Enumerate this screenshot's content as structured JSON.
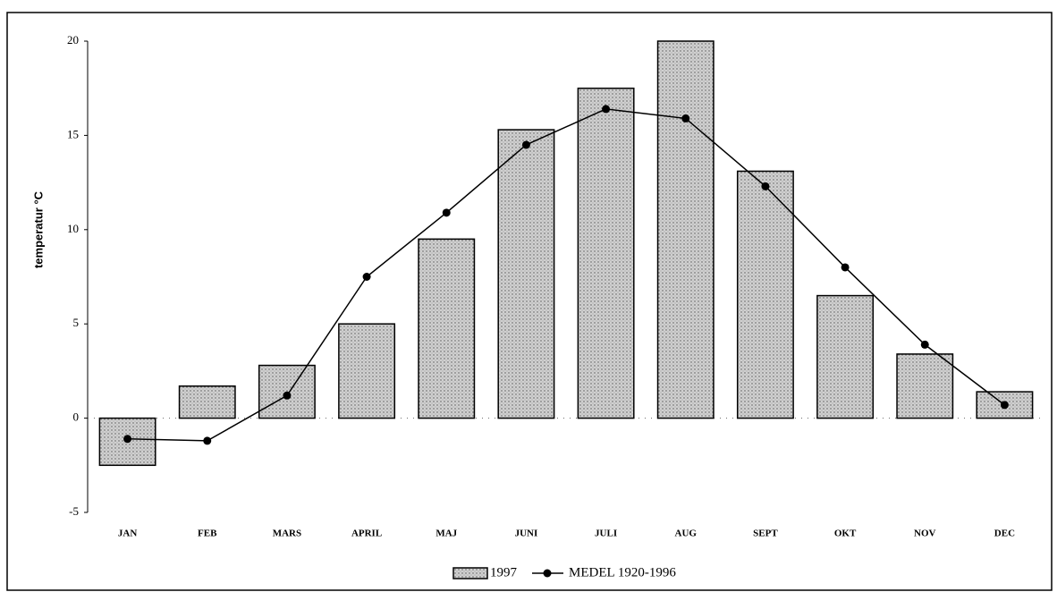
{
  "chart_data": {
    "type": "bar-line",
    "y_label": "temperatur °C",
    "categories": [
      "JAN",
      "FEB",
      "MARS",
      "APRIL",
      "MAJ",
      "JUNI",
      "JULI",
      "AUG",
      "SEPT",
      "OKT",
      "NOV",
      "DEC"
    ],
    "series": [
      {
        "name": "1997",
        "type": "bar",
        "color": "#d0d0d0",
        "values": [
          -2.5,
          1.7,
          2.8,
          5.0,
          9.5,
          15.3,
          17.5,
          20,
          13.1,
          6.5,
          3.4,
          1.4
        ]
      },
      {
        "name": "MEDEL 1920-1996",
        "type": "line",
        "color": "#000000",
        "values": [
          -1.1,
          -1.2,
          1.2,
          7.5,
          10.9,
          14.5,
          16.4,
          15.9,
          12.3,
          8.0,
          3.9,
          0.7
        ]
      }
    ],
    "ylim": [
      -5,
      20
    ],
    "yticks": [
      -5,
      0,
      5,
      10,
      15,
      20
    ],
    "grid": false
  }
}
